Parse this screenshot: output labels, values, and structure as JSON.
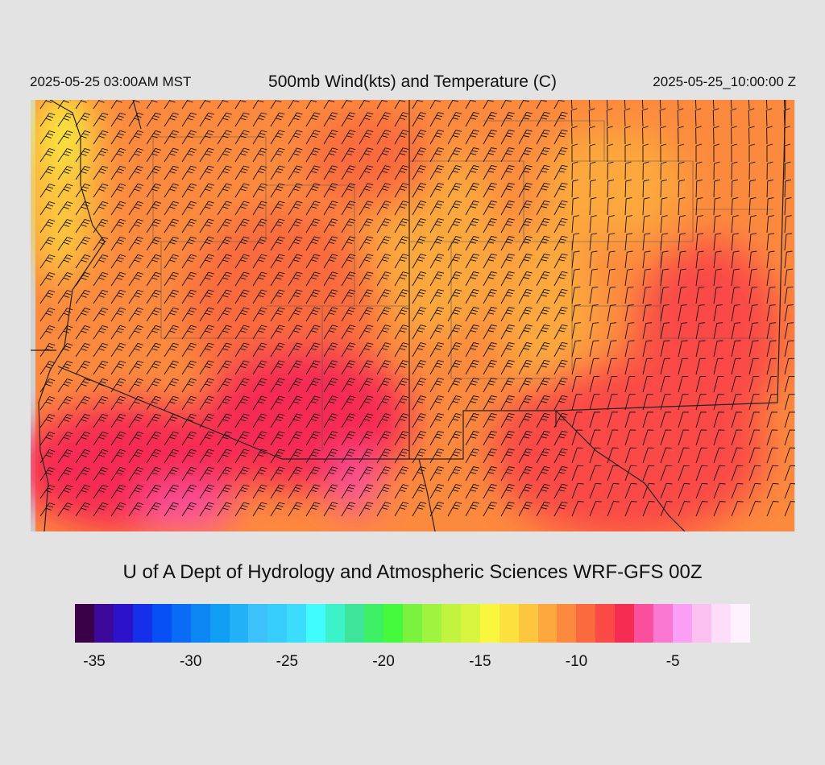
{
  "header": {
    "local_time": "2025-05-25 03:00AM MST",
    "title": "500mb Wind(kts) and Temperature (C)",
    "valid_time": "2025-05-25_10:00:00 Z"
  },
  "credit": "U of A Dept of Hydrology and Atmospheric Sciences WRF-GFS 00Z",
  "colorbar": {
    "colors": [
      "#3a0048",
      "#3c0a9a",
      "#2c13c9",
      "#1530e8",
      "#0650f5",
      "#0a6cf5",
      "#0c86f3",
      "#109ef4",
      "#22b1f6",
      "#3cc1fa",
      "#36ccfb",
      "#3cdcfc",
      "#40fcfc",
      "#3bf2c9",
      "#3de49a",
      "#3ef066",
      "#45fa3c",
      "#7bf23d",
      "#9ef43e",
      "#c0f43f",
      "#d9f43f",
      "#f9f63e",
      "#fce03e",
      "#fcc63e",
      "#fca83e",
      "#fc8a3e",
      "#fb6a3e",
      "#fa4a46",
      "#f72c52",
      "#f94f9c",
      "#fb78d2",
      "#fb9ef5",
      "#fcc0f0",
      "#fdddf8",
      "#fef2fe"
    ],
    "ticks": [
      "-35",
      "-30",
      "-25",
      "-20",
      "-15",
      "-10",
      "-5"
    ]
  }
}
